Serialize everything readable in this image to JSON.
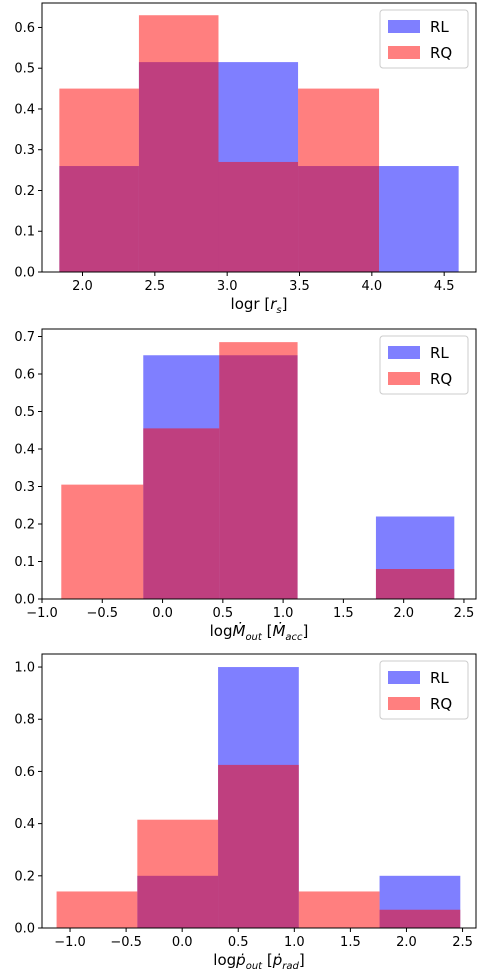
{
  "chart_data": [
    {
      "type": "bar",
      "xlabel": "logr [r_s]",
      "xlim": [
        1.72,
        4.72
      ],
      "ylim": [
        0,
        0.66
      ],
      "xticks": [
        "2.0",
        "2.5",
        "3.0",
        "3.5",
        "4.0",
        "4.5"
      ],
      "xtick_values": [
        2.0,
        2.5,
        3.0,
        3.5,
        4.0,
        4.5
      ],
      "yticks": [
        "0.0",
        "0.1",
        "0.2",
        "0.3",
        "0.4",
        "0.5",
        "0.6"
      ],
      "ytick_values": [
        0,
        0.1,
        0.2,
        0.3,
        0.4,
        0.5,
        0.6
      ],
      "legend_position": "top-right",
      "series": [
        {
          "name": "RL",
          "color": "#0000ff",
          "opacity": 0.5,
          "bins": [
            1.84,
            2.39,
            2.94,
            3.49,
            4.05,
            4.6
          ],
          "values": [
            0.26,
            0.515,
            0.515,
            0.26,
            0.26
          ]
        },
        {
          "name": "RQ",
          "color": "#ff0000",
          "opacity": 0.5,
          "bins": [
            1.84,
            2.39,
            2.94,
            3.49,
            4.05
          ],
          "values": [
            0.45,
            0.63,
            0.27,
            0.45
          ]
        }
      ]
    },
    {
      "type": "bar",
      "xlabel": "log Ṁ_out [Ṁ_acc]",
      "xlim": [
        -1.0,
        2.6
      ],
      "ylim": [
        0,
        0.72
      ],
      "xticks": [
        "−1.0",
        "−0.5",
        "0.0",
        "0.5",
        "1.0",
        "1.5",
        "2.0",
        "2.5"
      ],
      "xtick_values": [
        -1.0,
        -0.5,
        0.0,
        0.5,
        1.0,
        1.5,
        2.0,
        2.5
      ],
      "yticks": [
        "0.0",
        "0.1",
        "0.2",
        "0.3",
        "0.4",
        "0.5",
        "0.6",
        "0.7"
      ],
      "ytick_values": [
        0,
        0.1,
        0.2,
        0.3,
        0.4,
        0.5,
        0.6,
        0.7
      ],
      "legend_position": "top-right",
      "series": [
        {
          "name": "RL",
          "color": "#0000ff",
          "opacity": 0.5,
          "bins": [
            -0.16,
            0.47,
            1.12,
            1.77,
            2.42
          ],
          "values": [
            0.65,
            0.65,
            0.0,
            0.22
          ]
        },
        {
          "name": "RQ",
          "color": "#ff0000",
          "opacity": 0.5,
          "bins": [
            -0.84,
            -0.16,
            0.47,
            1.12,
            1.77,
            2.42
          ],
          "values": [
            0.305,
            0.455,
            0.685,
            0.0,
            0.08
          ]
        }
      ]
    },
    {
      "type": "bar",
      "xlabel": "log ṗ_out [ṗ_rad]",
      "xlim": [
        -1.25,
        2.62
      ],
      "ylim": [
        0,
        1.05
      ],
      "xticks": [
        "−1.0",
        "−0.5",
        "0.0",
        "0.5",
        "1.0",
        "1.5",
        "2.0",
        "2.5"
      ],
      "xtick_values": [
        -1.0,
        -0.5,
        0.0,
        0.5,
        1.0,
        1.5,
        2.0,
        2.5
      ],
      "yticks": [
        "0.0",
        "0.2",
        "0.4",
        "0.6",
        "0.8",
        "1.0"
      ],
      "ytick_values": [
        0,
        0.2,
        0.4,
        0.6,
        0.8,
        1.0
      ],
      "legend_position": "top-right",
      "series": [
        {
          "name": "RL",
          "color": "#0000ff",
          "opacity": 0.5,
          "bins": [
            -0.4,
            0.32,
            1.04,
            1.76,
            2.48
          ],
          "values": [
            0.2,
            1.0,
            0.0,
            0.2
          ]
        },
        {
          "name": "RQ",
          "color": "#ff0000",
          "opacity": 0.5,
          "bins": [
            -1.12,
            -0.4,
            0.32,
            1.04,
            1.76,
            2.48
          ],
          "values": [
            0.14,
            0.415,
            0.625,
            0.14,
            0.07
          ]
        }
      ]
    }
  ]
}
